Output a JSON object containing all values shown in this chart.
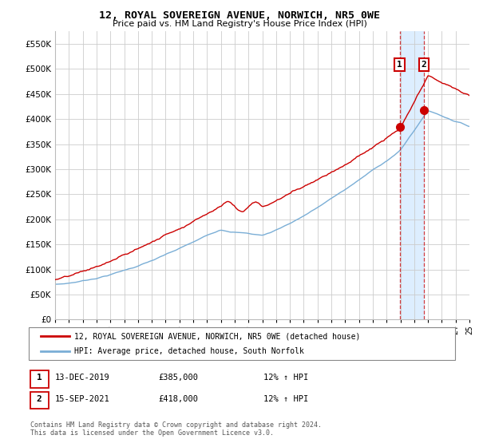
{
  "title": "12, ROYAL SOVEREIGN AVENUE, NORWICH, NR5 0WE",
  "subtitle": "Price paid vs. HM Land Registry's House Price Index (HPI)",
  "ylim": [
    0,
    575000
  ],
  "yticks": [
    0,
    50000,
    100000,
    150000,
    200000,
    250000,
    300000,
    350000,
    400000,
    450000,
    500000,
    550000
  ],
  "x_start_year": 1995,
  "x_end_year": 2025,
  "legend_line1": "12, ROYAL SOVEREIGN AVENUE, NORWICH, NR5 0WE (detached house)",
  "legend_line2": "HPI: Average price, detached house, South Norfolk",
  "annotation1_date": "13-DEC-2019",
  "annotation1_price": "£385,000",
  "annotation1_hpi": "12% ↑ HPI",
  "annotation1_year": 2019.95,
  "annotation1_value": 385000,
  "annotation2_date": "15-SEP-2021",
  "annotation2_price": "£418,000",
  "annotation2_hpi": "12% ↑ HPI",
  "annotation2_year": 2021.71,
  "annotation2_value": 418000,
  "red_color": "#cc0000",
  "blue_color": "#7aaed6",
  "highlight_color": "#ddeeff",
  "footnote": "Contains HM Land Registry data © Crown copyright and database right 2024.\nThis data is licensed under the Open Government Licence v3.0.",
  "background_color": "#ffffff",
  "grid_color": "#cccccc"
}
